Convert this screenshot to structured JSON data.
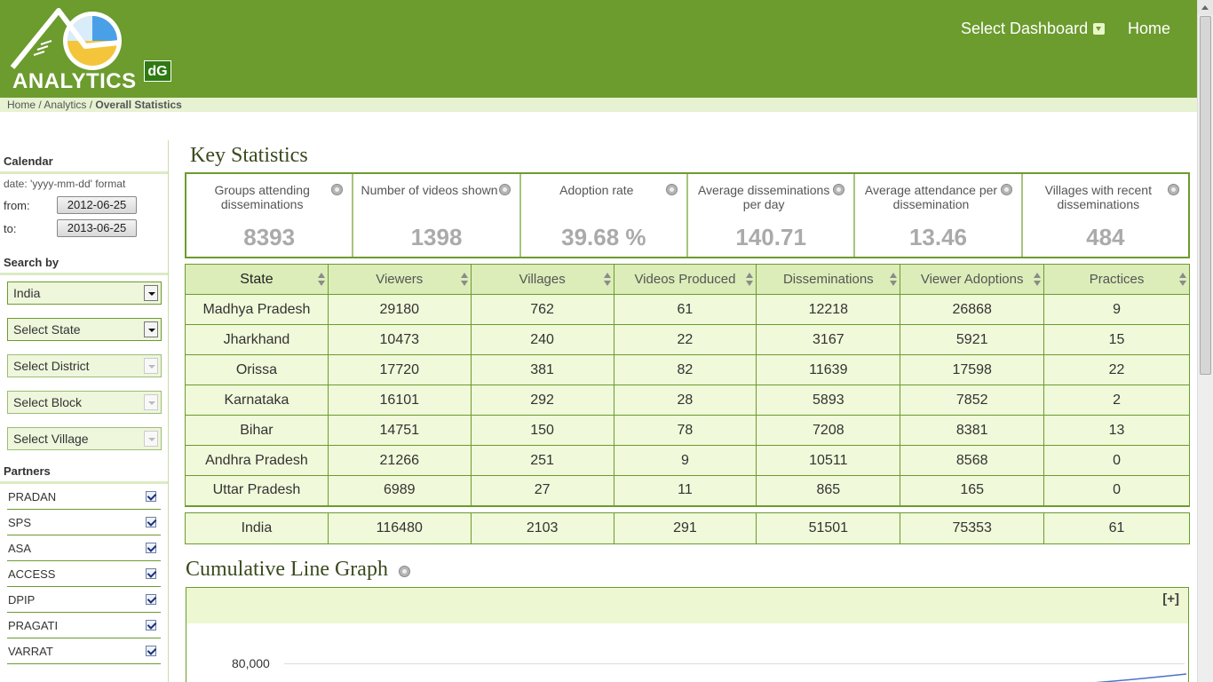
{
  "header": {
    "logo_text": "ANALYTICS",
    "logo_badge": "dG",
    "nav_dashboard": "Select Dashboard",
    "nav_home": "Home"
  },
  "breadcrumb": {
    "home": "Home",
    "sep1": " / ",
    "analytics": "Analytics",
    "sep2": " / ",
    "current": "Overall Statistics"
  },
  "sidebar": {
    "calendar_heading": "Calendar",
    "date_hint": "date: 'yyyy-mm-dd' format",
    "from_label": "from:",
    "from_value": "2012-06-25",
    "to_label": "to:",
    "to_value": "2013-06-25",
    "search_heading": "Search by",
    "selects": [
      "India",
      "Select State",
      "Select District",
      "Select Block",
      "Select Village"
    ],
    "partners_heading": "Partners",
    "partners": [
      "PRADAN",
      "SPS",
      "ASA",
      "ACCESS",
      "DPIP",
      "PRAGATI",
      "VARRAT"
    ]
  },
  "main": {
    "title": "Key Statistics",
    "stats": [
      {
        "label": "Groups attending disseminations",
        "value": "8393"
      },
      {
        "label": "Number of videos shown",
        "value": "1398"
      },
      {
        "label": "Adoption rate",
        "value": "39.68 %"
      },
      {
        "label": "Average disseminations per day",
        "value": "140.71"
      },
      {
        "label": "Average attendance per dissemination",
        "value": "13.46"
      },
      {
        "label": "Villages with recent disseminations",
        "value": "484"
      }
    ],
    "table": {
      "columns": [
        "State",
        "Viewers",
        "Villages",
        "Videos Produced",
        "Disseminations",
        "Viewer Adoptions",
        "Practices"
      ],
      "rows": [
        [
          "Madhya Pradesh",
          "29180",
          "762",
          "61",
          "12218",
          "26868",
          "9"
        ],
        [
          "Jharkhand",
          "10473",
          "240",
          "22",
          "3167",
          "5921",
          "15"
        ],
        [
          "Orissa",
          "17720",
          "381",
          "82",
          "11639",
          "17598",
          "22"
        ],
        [
          "Karnataka",
          "16101",
          "292",
          "28",
          "5893",
          "7852",
          "2"
        ],
        [
          "Bihar",
          "14751",
          "150",
          "78",
          "7208",
          "8381",
          "13"
        ],
        [
          "Andhra Pradesh",
          "21266",
          "251",
          "9",
          "10511",
          "8568",
          "0"
        ],
        [
          "Uttar Pradesh",
          "6989",
          "27",
          "11",
          "865",
          "165",
          "0"
        ]
      ],
      "total": [
        "India",
        "116480",
        "2103",
        "291",
        "51501",
        "75353",
        "61"
      ]
    },
    "graph": {
      "title": "Cumulative Line Graph",
      "expand_label": "[+]",
      "y_tick": "80,000"
    }
  },
  "colors": {
    "header_green": "#6c9b2e",
    "light_green": "#f0f9d9",
    "header_cell_green": "#dcedb9"
  }
}
